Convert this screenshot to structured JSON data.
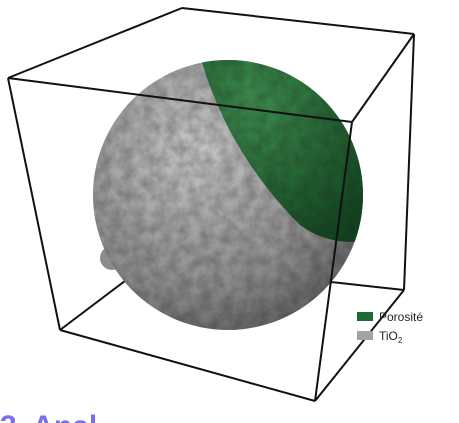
{
  "legend": {
    "items": [
      {
        "label": "Porosité",
        "color": "#1f6b34"
      },
      {
        "label": "TiO",
        "subscript": "2",
        "color": "#a3a3a3"
      }
    ]
  },
  "heading": "3. Anal"
}
